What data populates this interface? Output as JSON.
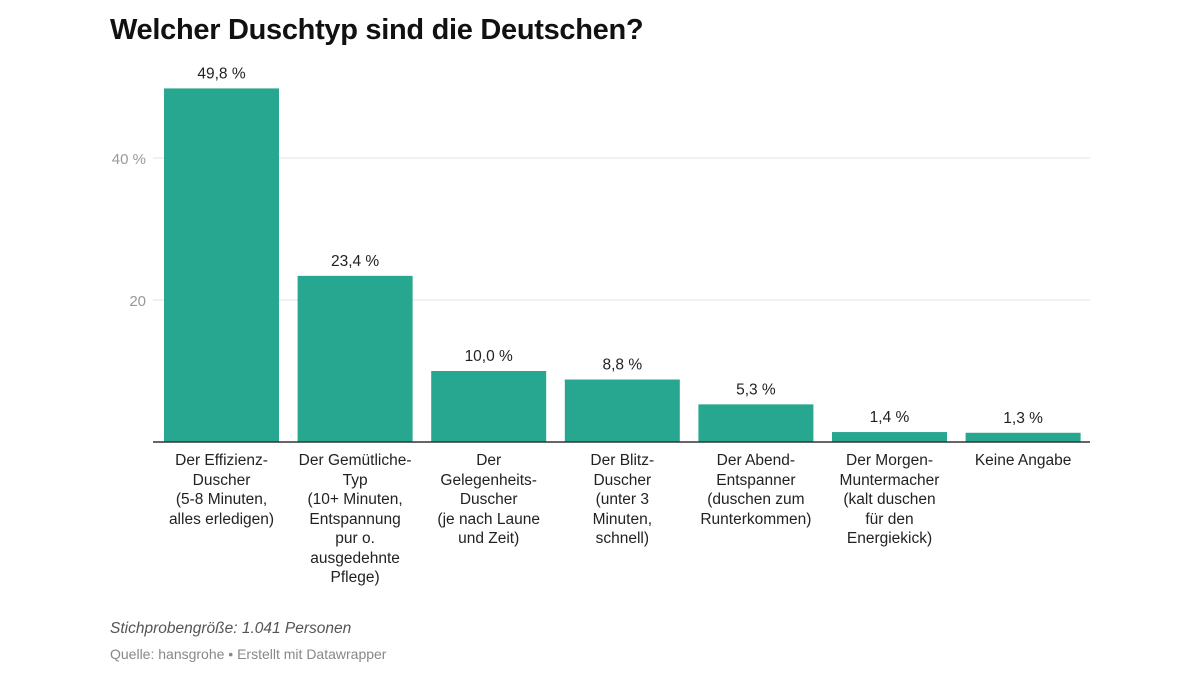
{
  "title": "Welcher Duschtyp sind die Deutschen?",
  "chart_data": {
    "type": "bar",
    "title": "Welcher Duschtyp sind die Deutschen?",
    "categories": [
      "Der Effizienz-\nDuscher\n(5-8 Minuten,\nalles erledigen)",
      "Der Gemütliche-\nTyp\n(10+ Minuten,\nEntspannung\npur o.\nausgedehnte\nPflege)",
      "Der\nGelegenheits-\nDuscher\n(je nach Laune\nund Zeit)",
      "Der Blitz-\nDuscher\n(unter 3\nMinuten,\nschnell)",
      "Der Abend-\nEntspanner\n(duschen zum\nRunterkommen)",
      "Der Morgen-\nMuntermacher\n(kalt duschen\nfür den\nEnergiekick)",
      "Keine Angabe"
    ],
    "values": [
      49.8,
      23.4,
      10.0,
      8.8,
      5.3,
      1.4,
      1.3
    ],
    "data_labels": [
      "49,8 %",
      "23,4 %",
      "10,0 %",
      "8,8 %",
      "5,3 %",
      "1,4 %",
      "1,3 %"
    ],
    "yticks": [
      20,
      40
    ],
    "ytick_labels": [
      "20",
      "40 %"
    ],
    "ylim": [
      0,
      50
    ],
    "grid": true,
    "bar_color": "#27a690",
    "xlabel": "",
    "ylabel": ""
  },
  "notes": "Stichprobengröße: 1.041 Personen",
  "source": "Quelle: hansgrohe • Erstellt mit Datawrapper"
}
